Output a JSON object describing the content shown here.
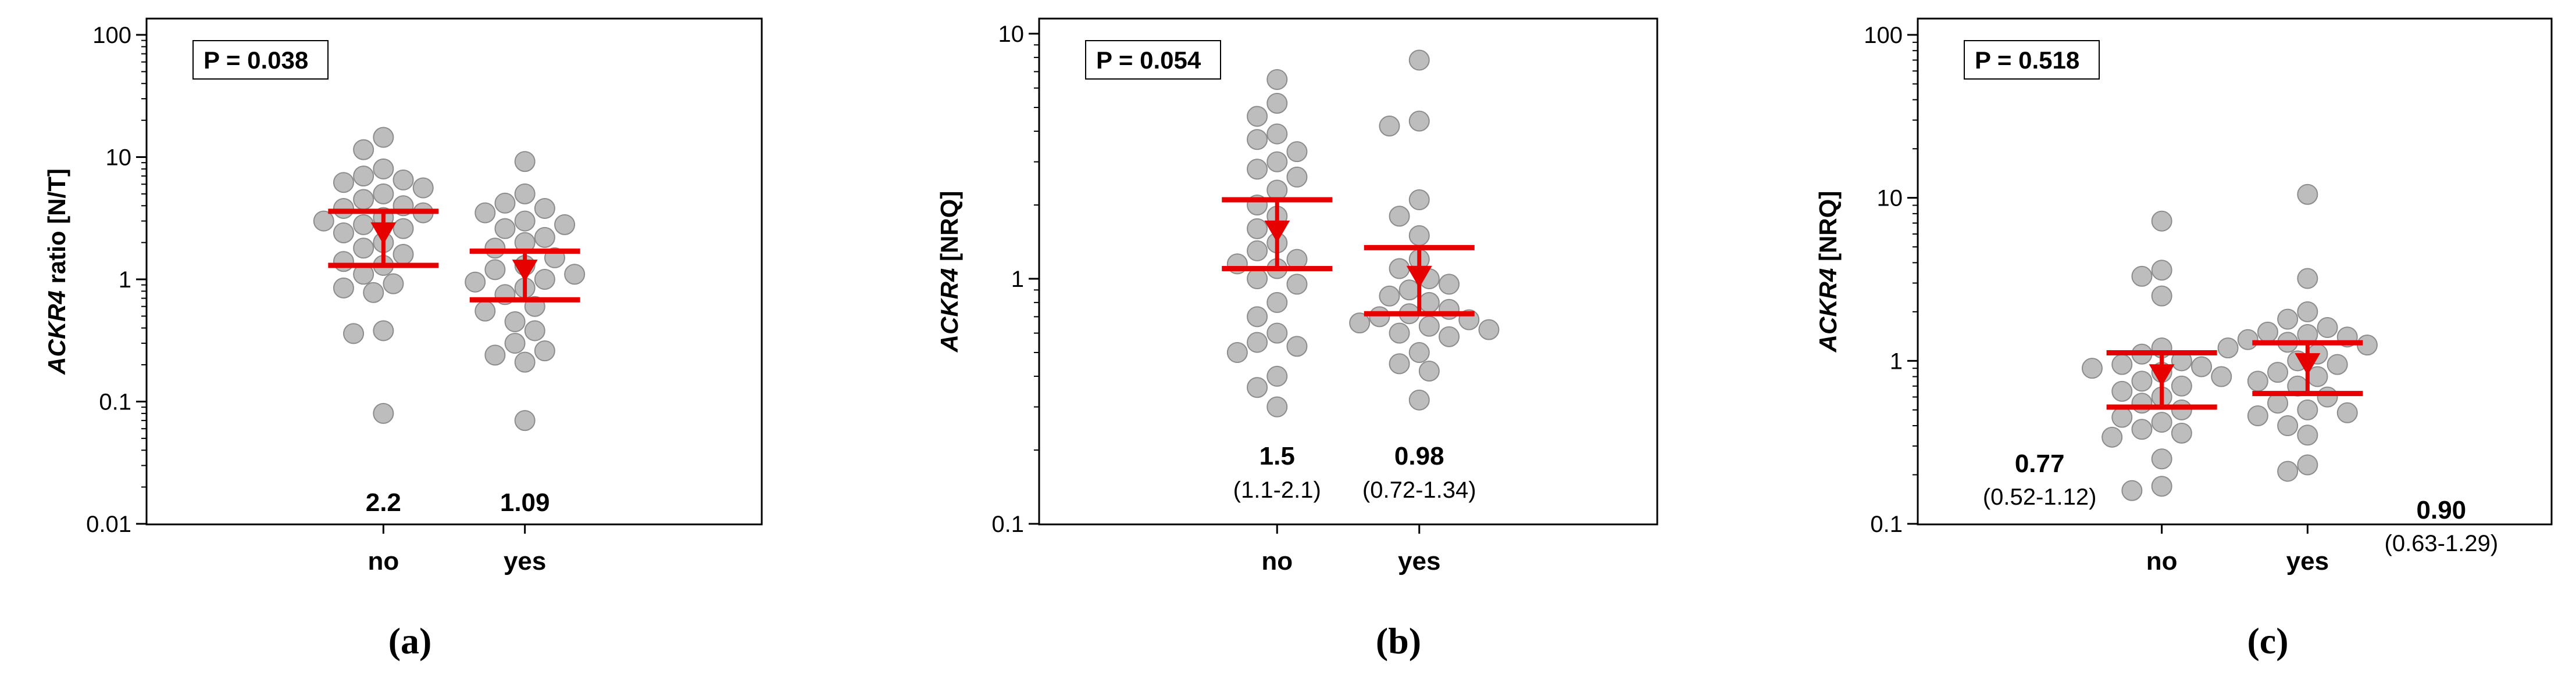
{
  "chart_data": [
    {
      "type": "scatter",
      "panel_label": "(a)",
      "ylabel_gene": "ACKR4",
      "ylabel_suffix": "ratio [N/T]",
      "yscale": "log",
      "ylim": [
        0.01,
        100
      ],
      "ytick_values": [
        0.01,
        0.1,
        1,
        10,
        100
      ],
      "ytick_labels": [
        "0.01",
        "0.1",
        "1",
        "10",
        "100"
      ],
      "categories": [
        "no",
        "yes"
      ],
      "p_value": "P = 0.038",
      "groups": [
        {
          "category": "no",
          "median": 2.2,
          "ci_low": 1.3,
          "ci_high": 3.6,
          "median_label": "2.2",
          "ci_label": "",
          "points": [
            14.5,
            11.5,
            8.0,
            7.0,
            6.5,
            6.2,
            5.6,
            5.0,
            4.5,
            4.0,
            3.8,
            3.5,
            3.2,
            3.0,
            2.8,
            2.6,
            2.4,
            2.0,
            1.8,
            1.6,
            1.4,
            1.3,
            1.1,
            0.92,
            0.85,
            0.78,
            0.38,
            0.36,
            0.08
          ]
        },
        {
          "category": "yes",
          "median": 1.09,
          "ci_low": 0.68,
          "ci_high": 1.7,
          "median_label": "1.09",
          "ci_label": "",
          "points": [
            9.2,
            5.0,
            4.2,
            3.8,
            3.5,
            3.0,
            2.8,
            2.6,
            2.2,
            2.0,
            1.8,
            1.5,
            1.3,
            1.2,
            1.1,
            1.0,
            0.95,
            0.85,
            0.75,
            0.6,
            0.55,
            0.45,
            0.38,
            0.3,
            0.26,
            0.24,
            0.21,
            0.07
          ]
        }
      ]
    },
    {
      "type": "scatter",
      "panel_label": "(b)",
      "ylabel_gene": "ACKR4",
      "ylabel_suffix": "[NRQ]",
      "yscale": "log",
      "ylim": [
        0.1,
        10
      ],
      "ytick_values": [
        0.1,
        1,
        10
      ],
      "ytick_labels": [
        "0.1",
        "1",
        "10"
      ],
      "categories": [
        "no",
        "yes"
      ],
      "p_value": "P = 0.054",
      "groups": [
        {
          "category": "no",
          "median": 1.5,
          "ci_low": 1.1,
          "ci_high": 2.1,
          "median_label": "1.5",
          "ci_label": "(1.1-2.1)",
          "points": [
            6.5,
            5.2,
            4.6,
            3.9,
            3.7,
            3.3,
            3.0,
            2.8,
            2.6,
            2.3,
            2.0,
            1.8,
            1.6,
            1.4,
            1.3,
            1.2,
            1.15,
            1.1,
            1.0,
            0.95,
            0.8,
            0.7,
            0.6,
            0.55,
            0.53,
            0.5,
            0.4,
            0.36,
            0.3
          ]
        },
        {
          "category": "yes",
          "median": 0.98,
          "ci_low": 0.72,
          "ci_high": 1.34,
          "median_label": "0.98",
          "ci_label": "(0.72-1.34)",
          "points": [
            7.8,
            4.4,
            4.2,
            2.1,
            1.8,
            1.5,
            1.2,
            1.1,
            1.0,
            0.95,
            0.9,
            0.85,
            0.8,
            0.75,
            0.72,
            0.7,
            0.68,
            0.66,
            0.64,
            0.62,
            0.6,
            0.58,
            0.5,
            0.45,
            0.42,
            0.32
          ]
        }
      ]
    },
    {
      "type": "scatter",
      "panel_label": "(c)",
      "ylabel_gene": "ACKR4",
      "ylabel_suffix": "[NRQ]",
      "yscale": "log",
      "ylim": [
        0.1,
        100
      ],
      "ytick_values": [
        0.1,
        1,
        10,
        100
      ],
      "ytick_labels": [
        "0.1",
        "1",
        "10",
        "100"
      ],
      "categories": [
        "no",
        "yes"
      ],
      "p_value": "P = 0.518",
      "groups": [
        {
          "category": "no",
          "median": 0.77,
          "ci_low": 0.52,
          "ci_high": 1.12,
          "median_label": "0.77",
          "ci_label": "(0.52-1.12)",
          "points": [
            7.2,
            3.6,
            3.3,
            2.5,
            1.2,
            1.1,
            1.0,
            0.95,
            0.92,
            0.9,
            0.85,
            0.8,
            0.75,
            0.7,
            0.65,
            0.6,
            0.55,
            0.5,
            0.45,
            0.42,
            0.38,
            0.36,
            0.34,
            0.25,
            0.17,
            0.16
          ]
        },
        {
          "category": "yes",
          "median": 0.9,
          "ci_low": 0.63,
          "ci_high": 1.29,
          "median_label": "0.90",
          "ci_label": "(0.63-1.29)",
          "points": [
            10.5,
            3.2,
            2.0,
            1.8,
            1.6,
            1.5,
            1.45,
            1.4,
            1.35,
            1.3,
            1.25,
            1.2,
            1.1,
            1.0,
            0.95,
            0.85,
            0.8,
            0.75,
            0.7,
            0.6,
            0.55,
            0.5,
            0.48,
            0.46,
            0.4,
            0.35,
            0.23,
            0.21
          ]
        }
      ]
    }
  ]
}
